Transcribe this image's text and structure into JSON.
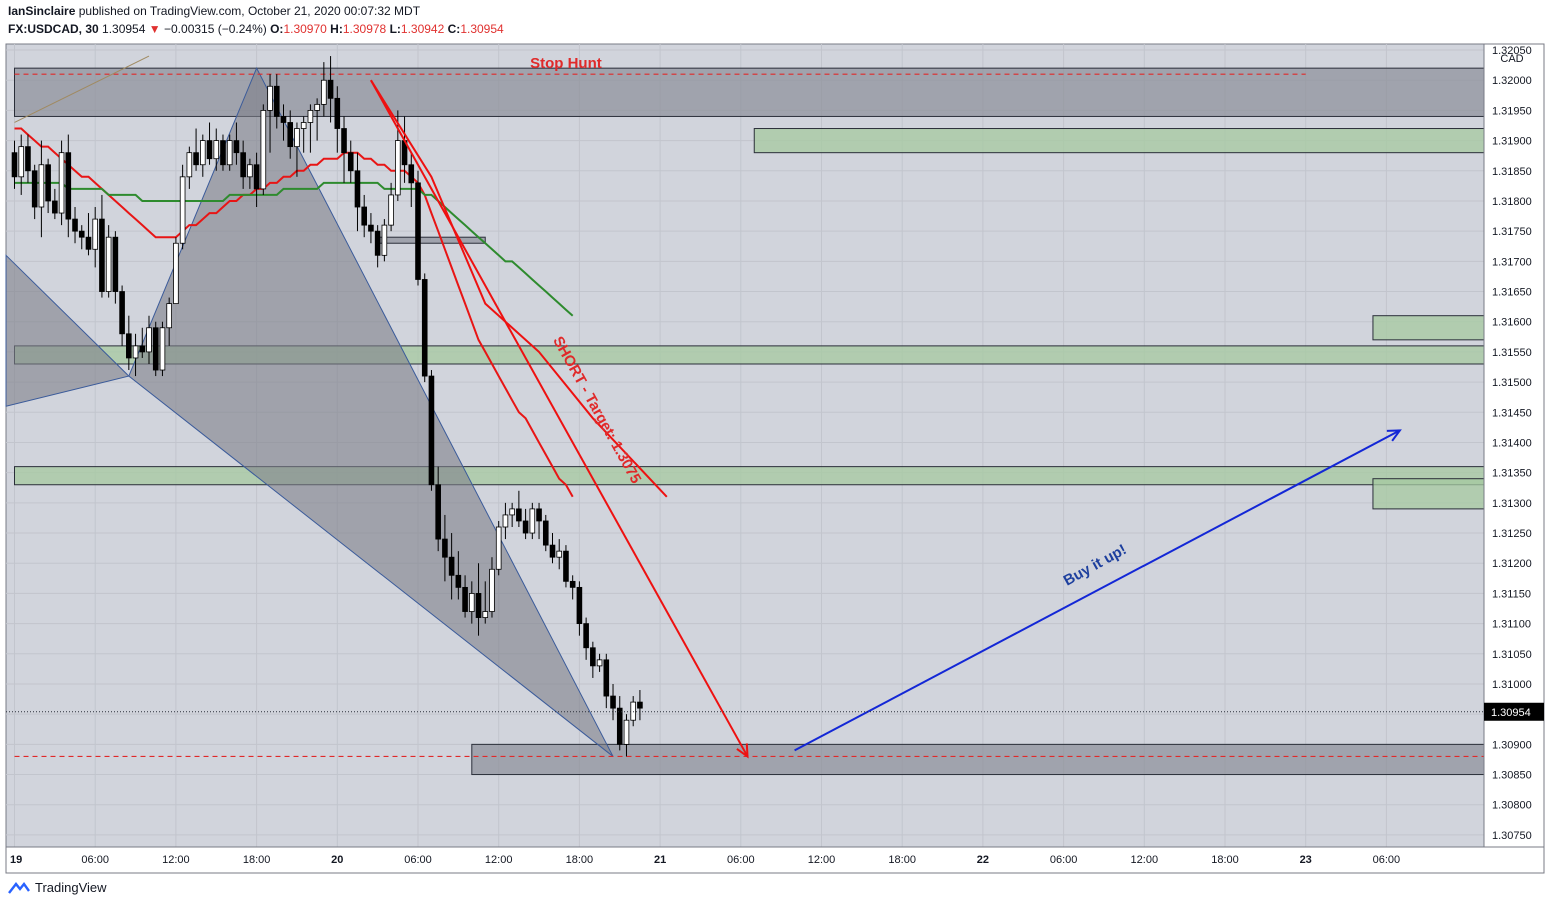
{
  "header": {
    "author": "IanSinclaire",
    "published": "published on TradingView.com, October 21, 2020 00:07:32 MDT",
    "symbol": "FX:USDCAD, 30",
    "price": "1.30954",
    "change": "−0.00315 (−0.24%)",
    "open_label": "O:",
    "open": "1.30970",
    "high_label": "H:",
    "high": "1.30978",
    "low_label": "L:",
    "low": "1.30942",
    "close_label": "C:",
    "close": "1.30954"
  },
  "footer": {
    "brand": "TradingView"
  },
  "colors": {
    "background": "#d1d4dc",
    "up_candle": "#ffffff",
    "down_candle": "#000000",
    "ma_fast": "#e81515",
    "ma_slow": "#2e8b2e",
    "demand_zone": "#a5c9a0",
    "supply_zone": "#8c8f99",
    "harmonic": "#7e818b",
    "short_arrow": "#ee1111",
    "long_arrow": "#1327d6"
  },
  "chart_data": {
    "type": "candlestick",
    "currency": "CAD",
    "ylim": [
      1.3073,
      1.3206
    ],
    "y_ticks": [
      "1.30750",
      "1.30800",
      "1.30850",
      "1.30900",
      "1.30950",
      "1.31000",
      "1.31050",
      "1.31100",
      "1.31150",
      "1.31200",
      "1.31250",
      "1.31300",
      "1.31350",
      "1.31400",
      "1.31450",
      "1.31500",
      "1.31550",
      "1.31600",
      "1.31650",
      "1.31700",
      "1.31750",
      "1.31800",
      "1.31850",
      "1.31900",
      "1.31950",
      "1.32000",
      "1.32050"
    ],
    "x_ticks": [
      "19",
      "06:00",
      "12:00",
      "18:00",
      "20",
      "06:00",
      "12:00",
      "18:00",
      "21",
      "06:00",
      "12:00",
      "18:00",
      "22",
      "06:00",
      "12:00",
      "18:00",
      "23",
      "06:00"
    ],
    "x_tick_index": [
      0,
      12,
      24,
      36,
      48,
      60,
      72,
      84,
      96,
      108,
      120,
      132,
      144,
      156,
      168,
      180,
      192,
      204
    ],
    "last_price_label": "1.30954",
    "last_price": 1.30954,
    "candles": [
      [
        1.3188,
        1.319,
        1.3182,
        1.3184
      ],
      [
        1.3184,
        1.3191,
        1.3181,
        1.3189
      ],
      [
        1.3189,
        1.3191,
        1.3183,
        1.3185
      ],
      [
        1.3185,
        1.3186,
        1.3177,
        1.3179
      ],
      [
        1.3179,
        1.319,
        1.3174,
        1.3186
      ],
      [
        1.3186,
        1.3187,
        1.3178,
        1.318
      ],
      [
        1.318,
        1.3182,
        1.3177,
        1.3178
      ],
      [
        1.3178,
        1.319,
        1.3176,
        1.3188
      ],
      [
        1.3188,
        1.3191,
        1.3174,
        1.3177
      ],
      [
        1.3177,
        1.3179,
        1.3173,
        1.3175
      ],
      [
        1.3175,
        1.3176,
        1.3172,
        1.3174
      ],
      [
        1.3174,
        1.3178,
        1.3171,
        1.3172
      ],
      [
        1.3172,
        1.3179,
        1.3169,
        1.3177
      ],
      [
        1.3177,
        1.3181,
        1.3164,
        1.3165
      ],
      [
        1.3165,
        1.3176,
        1.3164,
        1.3174
      ],
      [
        1.3174,
        1.3175,
        1.3163,
        1.3165
      ],
      [
        1.3165,
        1.3166,
        1.3156,
        1.3158
      ],
      [
        1.3158,
        1.3161,
        1.3152,
        1.3154
      ],
      [
        1.3154,
        1.3158,
        1.3151,
        1.3156
      ],
      [
        1.3156,
        1.3159,
        1.3154,
        1.3155
      ],
      [
        1.3155,
        1.3161,
        1.3153,
        1.3159
      ],
      [
        1.3159,
        1.316,
        1.3151,
        1.3152
      ],
      [
        1.3152,
        1.316,
        1.3151,
        1.3159
      ],
      [
        1.3159,
        1.3164,
        1.3156,
        1.3163
      ],
      [
        1.3163,
        1.3174,
        1.3163,
        1.3173
      ],
      [
        1.3173,
        1.3186,
        1.3172,
        1.3184
      ],
      [
        1.3184,
        1.3189,
        1.3182,
        1.3188
      ],
      [
        1.3188,
        1.3192,
        1.3185,
        1.3186
      ],
      [
        1.3186,
        1.3191,
        1.3184,
        1.319
      ],
      [
        1.319,
        1.3193,
        1.3186,
        1.3187
      ],
      [
        1.3187,
        1.3192,
        1.3185,
        1.319
      ],
      [
        1.319,
        1.3191,
        1.3185,
        1.3186
      ],
      [
        1.3186,
        1.3191,
        1.3185,
        1.319
      ],
      [
        1.319,
        1.3193,
        1.3186,
        1.3188
      ],
      [
        1.3188,
        1.319,
        1.3182,
        1.3184
      ],
      [
        1.3184,
        1.3187,
        1.3182,
        1.3186
      ],
      [
        1.3186,
        1.3188,
        1.3179,
        1.3182
      ],
      [
        1.3182,
        1.3196,
        1.3181,
        1.3195
      ],
      [
        1.3195,
        1.3201,
        1.3188,
        1.3199
      ],
      [
        1.3199,
        1.3201,
        1.3192,
        1.3194
      ],
      [
        1.3194,
        1.3196,
        1.319,
        1.3193
      ],
      [
        1.3193,
        1.3195,
        1.3187,
        1.3189
      ],
      [
        1.3189,
        1.3193,
        1.3184,
        1.3192
      ],
      [
        1.3192,
        1.3194,
        1.3188,
        1.3193
      ],
      [
        1.3193,
        1.3196,
        1.3188,
        1.3195
      ],
      [
        1.3195,
        1.3197,
        1.319,
        1.3196
      ],
      [
        1.3196,
        1.3203,
        1.3194,
        1.32
      ],
      [
        1.32,
        1.3204,
        1.3193,
        1.3197
      ],
      [
        1.3197,
        1.3199,
        1.3188,
        1.3192
      ],
      [
        1.3192,
        1.3194,
        1.3183,
        1.3188
      ],
      [
        1.3188,
        1.319,
        1.3183,
        1.3185
      ],
      [
        1.3185,
        1.3188,
        1.3175,
        1.3179
      ],
      [
        1.3179,
        1.3181,
        1.3174,
        1.3176
      ],
      [
        1.3176,
        1.3178,
        1.3173,
        1.3175
      ],
      [
        1.3175,
        1.3176,
        1.3169,
        1.3171
      ],
      [
        1.3171,
        1.3177,
        1.317,
        1.3176
      ],
      [
        1.3176,
        1.3183,
        1.3175,
        1.3181
      ],
      [
        1.3181,
        1.3195,
        1.318,
        1.319
      ],
      [
        1.319,
        1.3194,
        1.3183,
        1.3186
      ],
      [
        1.3186,
        1.3188,
        1.3179,
        1.3183
      ],
      [
        1.3183,
        1.3185,
        1.3166,
        1.3167
      ],
      [
        1.3167,
        1.3168,
        1.315,
        1.3151
      ],
      [
        1.3151,
        1.3152,
        1.3132,
        1.3133
      ],
      [
        1.3133,
        1.3136,
        1.3122,
        1.3124
      ],
      [
        1.3124,
        1.3128,
        1.3117,
        1.3121
      ],
      [
        1.3121,
        1.3125,
        1.3114,
        1.3118
      ],
      [
        1.3118,
        1.3122,
        1.3114,
        1.3116
      ],
      [
        1.3116,
        1.3118,
        1.3111,
        1.3112
      ],
      [
        1.3112,
        1.3117,
        1.311,
        1.3115
      ],
      [
        1.3115,
        1.312,
        1.3108,
        1.3111
      ],
      [
        1.3111,
        1.3117,
        1.311,
        1.3112
      ],
      [
        1.3112,
        1.3121,
        1.3111,
        1.3119
      ],
      [
        1.3119,
        1.3127,
        1.3118,
        1.3126
      ],
      [
        1.3126,
        1.313,
        1.3124,
        1.3128
      ],
      [
        1.3128,
        1.313,
        1.3126,
        1.3129
      ],
      [
        1.3129,
        1.3132,
        1.3126,
        1.3127
      ],
      [
        1.3127,
        1.3129,
        1.3124,
        1.3125
      ],
      [
        1.3125,
        1.313,
        1.3124,
        1.3129
      ],
      [
        1.3129,
        1.313,
        1.3124,
        1.3127
      ],
      [
        1.3127,
        1.3128,
        1.3122,
        1.3123
      ],
      [
        1.3123,
        1.3125,
        1.312,
        1.3121
      ],
      [
        1.3121,
        1.3124,
        1.3119,
        1.3122
      ],
      [
        1.3122,
        1.3123,
        1.3116,
        1.3117
      ],
      [
        1.3117,
        1.3118,
        1.3114,
        1.3116
      ],
      [
        1.3116,
        1.3117,
        1.3108,
        1.311
      ],
      [
        1.311,
        1.3111,
        1.3104,
        1.3106
      ],
      [
        1.3106,
        1.3107,
        1.3101,
        1.3103
      ],
      [
        1.3103,
        1.3105,
        1.3102,
        1.3104
      ],
      [
        1.3104,
        1.3105,
        1.3096,
        1.3098
      ],
      [
        1.3098,
        1.31,
        1.3094,
        1.3096
      ],
      [
        1.3096,
        1.3098,
        1.3089,
        1.309
      ],
      [
        1.309,
        1.3095,
        1.3088,
        1.3094
      ],
      [
        1.3094,
        1.3098,
        1.3093,
        1.3097
      ],
      [
        1.3097,
        1.3099,
        1.3094,
        1.3096
      ]
    ],
    "series": [
      {
        "type": "line",
        "color": "#e81515",
        "values": [
          1.3192,
          1.3192,
          1.3191,
          1.319,
          1.3189,
          1.3189,
          1.3188,
          1.3187,
          1.3186,
          1.3185,
          1.3184,
          1.3184,
          1.3183,
          1.3182,
          1.3181,
          1.318,
          1.3179,
          1.3178,
          1.3177,
          1.3176,
          1.3175,
          1.3174,
          1.3174,
          1.3174,
          1.3174,
          1.3175,
          1.3176,
          1.3176,
          1.3177,
          1.3178,
          1.3178,
          1.3179,
          1.318,
          1.318,
          1.3181,
          1.3181,
          1.3182,
          1.3182,
          1.3183,
          1.3183,
          1.3184,
          1.3184,
          1.3185,
          1.3185,
          1.3186,
          1.3186,
          1.3187,
          1.3187,
          1.3187,
          1.3188,
          1.3188,
          1.3188,
          1.3187,
          1.3187,
          1.3186,
          1.3186,
          1.3185,
          1.3185,
          1.3185,
          1.3184,
          1.3183,
          1.3181,
          1.3178,
          1.3175,
          1.3172,
          1.3169,
          1.3166,
          1.3163,
          1.316,
          1.3157,
          1.3155,
          1.3153,
          1.3151,
          1.3149,
          1.3147,
          1.3145,
          1.3144,
          1.3142,
          1.314,
          1.3138,
          1.3136,
          1.3134,
          1.3133,
          1.3131
        ]
      },
      {
        "type": "line",
        "color": "#2e8b2e",
        "values": [
          1.3183,
          1.3183,
          1.3183,
          1.3183,
          1.3183,
          1.3183,
          1.3183,
          1.3183,
          1.3182,
          1.3182,
          1.3182,
          1.3182,
          1.3182,
          1.3182,
          1.3181,
          1.3181,
          1.3181,
          1.3181,
          1.3181,
          1.318,
          1.318,
          1.318,
          1.318,
          1.318,
          1.318,
          1.318,
          1.318,
          1.318,
          1.318,
          1.318,
          1.318,
          1.318,
          1.3181,
          1.3181,
          1.3181,
          1.3181,
          1.3181,
          1.3181,
          1.3181,
          1.3181,
          1.3182,
          1.3182,
          1.3182,
          1.3182,
          1.3182,
          1.3182,
          1.3183,
          1.3183,
          1.3183,
          1.3183,
          1.3183,
          1.3183,
          1.3183,
          1.3183,
          1.3183,
          1.3182,
          1.3182,
          1.3182,
          1.3182,
          1.3182,
          1.3182,
          1.3181,
          1.3181,
          1.318,
          1.3179,
          1.3178,
          1.3177,
          1.3176,
          1.3175,
          1.3174,
          1.3173,
          1.3172,
          1.3171,
          1.317,
          1.317,
          1.3169,
          1.3168,
          1.3167,
          1.3166,
          1.3165,
          1.3164,
          1.3163,
          1.3162,
          1.3161
        ]
      }
    ],
    "zones": [
      {
        "kind": "supply",
        "from_index": 0,
        "to_index": "end",
        "top": 1.3202,
        "bottom": 1.3194
      },
      {
        "kind": "demand",
        "from_index": 110,
        "to_index": "end",
        "top": 1.3192,
        "bottom": 1.3188
      },
      {
        "kind": "demand",
        "from_index": 202,
        "to_index": "end",
        "top": 1.3161,
        "bottom": 1.3157
      },
      {
        "kind": "demand",
        "from_index": 0,
        "to_index": "end",
        "top": 1.3156,
        "bottom": 1.3153
      },
      {
        "kind": "demand",
        "from_index": 0,
        "to_index": "end",
        "top": 1.3136,
        "bottom": 1.3133
      },
      {
        "kind": "demand",
        "from_index": 202,
        "to_index": "end",
        "top": 1.3134,
        "bottom": 1.3129
      },
      {
        "kind": "supply",
        "from_index": 68,
        "to_index": "end",
        "top": 1.309,
        "bottom": 1.3085
      },
      {
        "kind": "supply",
        "from_index": 54,
        "to_index": 70,
        "top": 1.3174,
        "bottom": 1.3173
      }
    ],
    "levels": [
      {
        "value": 1.3201,
        "from_index": 0,
        "to_index": 192,
        "style": "dashed-red"
      },
      {
        "value": 1.3088,
        "from_index": 0,
        "to_index": "end",
        "style": "dashed-red"
      }
    ],
    "harmonic_pattern": [
      {
        "i": -1,
        "v": 1.3171
      },
      {
        "i": -1,
        "v": 1.3146
      },
      {
        "i": 17,
        "v": 1.3151
      },
      {
        "i": 36,
        "v": 1.3202
      },
      {
        "i": 89,
        "v": 1.3088
      }
    ],
    "trend_lines": [
      {
        "color": "#ee1111",
        "style": "arrow",
        "from": [
          53,
          1.32
        ],
        "to": [
          109,
          1.3088
        ]
      },
      {
        "color": "#ee1111",
        "style": "curve",
        "points": [
          [
            53,
            1.32
          ],
          [
            62,
            1.3184
          ],
          [
            70,
            1.3163
          ],
          [
            78,
            1.3155
          ],
          [
            86,
            1.3144
          ],
          [
            97,
            1.3131
          ]
        ]
      },
      {
        "color": "#1327d6",
        "style": "arrow",
        "from": [
          116,
          1.3089
        ],
        "to": [
          206,
          1.3142
        ]
      },
      {
        "color": "#a08a60",
        "style": "plain",
        "from": [
          0,
          1.3193
        ],
        "to": [
          20,
          1.3204
        ]
      }
    ],
    "annotations": [
      {
        "text": "Stop Hunt",
        "color": "#e02a2a",
        "at": [
          82,
          1.3202
        ]
      },
      {
        "text": "SHORT - Target: 1.3075",
        "color": "#e02a2a",
        "at": [
          86,
          1.3145
        ],
        "rotate": 61
      },
      {
        "text": "Buy it up!",
        "color": "#1d3f9e",
        "at": [
          161,
          1.3119
        ],
        "rotate": -29
      }
    ]
  }
}
